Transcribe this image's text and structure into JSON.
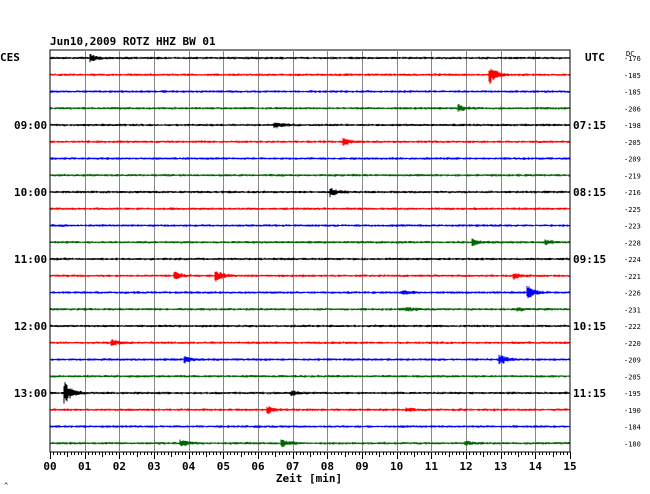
{
  "title": "Jun10,2009   ROTZ HHZ BW 01",
  "left_tz": "CES",
  "right_tz": "UTC",
  "dc_label": "DC",
  "xlabel": "Zeit [min]",
  "corner_mark": "^",
  "colors": {
    "black": "#000000",
    "red": "#ff0000",
    "blue": "#0000ff",
    "green": "#006400"
  },
  "chart_data": {
    "type": "line",
    "xlim": [
      0,
      15
    ],
    "xticks": [
      "00",
      "01",
      "02",
      "03",
      "04",
      "05",
      "06",
      "07",
      "08",
      "09",
      "10",
      "11",
      "12",
      "13",
      "14",
      "15"
    ],
    "left_hour_labels": [
      {
        "trace": 4,
        "text": "09:00"
      },
      {
        "trace": 8,
        "text": "10:00"
      },
      {
        "trace": 12,
        "text": "11:00"
      },
      {
        "trace": 16,
        "text": "12:00"
      },
      {
        "trace": 20,
        "text": "13:00"
      }
    ],
    "right_hour_labels": [
      {
        "trace": 4,
        "text": "07:15"
      },
      {
        "trace": 8,
        "text": "08:15"
      },
      {
        "trace": 12,
        "text": "09:15"
      },
      {
        "trace": 16,
        "text": "10:15"
      },
      {
        "trace": 20,
        "text": "11:15"
      }
    ],
    "traces": [
      {
        "color": "black",
        "dc": "-176",
        "events": [
          {
            "t": 1.2,
            "amp": 3
          }
        ]
      },
      {
        "color": "red",
        "dc": "-185",
        "events": [
          {
            "t": 12.7,
            "amp": 8
          }
        ]
      },
      {
        "color": "blue",
        "dc": "-185",
        "events": []
      },
      {
        "color": "green",
        "dc": "-206",
        "events": [
          {
            "t": 11.8,
            "amp": 3
          }
        ]
      },
      {
        "color": "black",
        "dc": "-198",
        "events": [
          {
            "t": 6.5,
            "amp": 3
          }
        ]
      },
      {
        "color": "red",
        "dc": "-205",
        "events": [
          {
            "t": 8.5,
            "amp": 3
          }
        ]
      },
      {
        "color": "blue",
        "dc": "-209",
        "events": []
      },
      {
        "color": "green",
        "dc": "-219",
        "events": []
      },
      {
        "color": "black",
        "dc": "-216",
        "events": [
          {
            "t": 8.1,
            "amp": 4
          }
        ]
      },
      {
        "color": "red",
        "dc": "-225",
        "events": []
      },
      {
        "color": "blue",
        "dc": "-223",
        "events": []
      },
      {
        "color": "green",
        "dc": "-228",
        "events": [
          {
            "t": 12.2,
            "amp": 3
          },
          {
            "t": 14.3,
            "amp": 2
          }
        ]
      },
      {
        "color": "black",
        "dc": "-224",
        "events": []
      },
      {
        "color": "red",
        "dc": "-221",
        "events": [
          {
            "t": 3.6,
            "amp": 4
          },
          {
            "t": 4.8,
            "amp": 5
          },
          {
            "t": 13.4,
            "amp": 3
          }
        ]
      },
      {
        "color": "blue",
        "dc": "-226",
        "events": [
          {
            "t": 13.8,
            "amp": 6
          },
          {
            "t": 10.2,
            "amp": 2
          }
        ]
      },
      {
        "color": "green",
        "dc": "-231",
        "events": [
          {
            "t": 10.3,
            "amp": 2
          },
          {
            "t": 13.5,
            "amp": 2
          }
        ]
      },
      {
        "color": "black",
        "dc": "-222",
        "events": []
      },
      {
        "color": "red",
        "dc": "-220",
        "events": [
          {
            "t": 1.8,
            "amp": 3
          }
        ]
      },
      {
        "color": "blue",
        "dc": "-209",
        "events": [
          {
            "t": 3.9,
            "amp": 3
          },
          {
            "t": 13.0,
            "amp": 5
          }
        ]
      },
      {
        "color": "green",
        "dc": "-205",
        "events": []
      },
      {
        "color": "black",
        "dc": "-195",
        "events": [
          {
            "t": 0.45,
            "amp": 10
          },
          {
            "t": 7.0,
            "amp": 2
          }
        ]
      },
      {
        "color": "red",
        "dc": "-190",
        "events": [
          {
            "t": 6.3,
            "amp": 3
          },
          {
            "t": 10.3,
            "amp": 2
          }
        ]
      },
      {
        "color": "blue",
        "dc": "-184",
        "events": []
      },
      {
        "color": "green",
        "dc": "-180",
        "events": [
          {
            "t": 3.8,
            "amp": 3
          },
          {
            "t": 6.7,
            "amp": 3
          },
          {
            "t": 12.0,
            "amp": 2
          }
        ]
      }
    ]
  }
}
